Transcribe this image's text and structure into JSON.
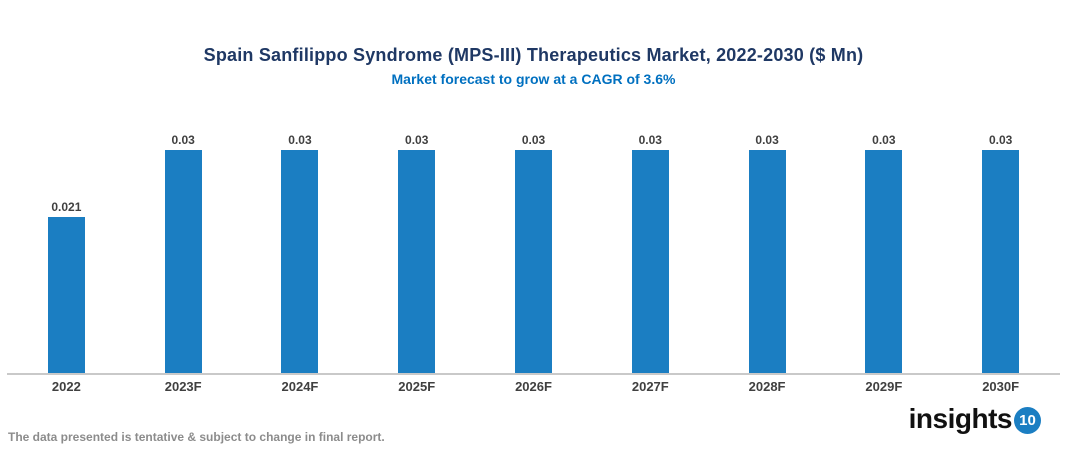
{
  "chart_data": {
    "type": "bar",
    "title": "Spain Sanfilippo Syndrome (MPS-III) Therapeutics Market, 2022-2030 ($ Mn)",
    "subtitle": "Market forecast to grow at a CAGR of 3.6%",
    "categories": [
      "2022",
      "2023F",
      "2024F",
      "2025F",
      "2026F",
      "2027F",
      "2028F",
      "2029F",
      "2030F"
    ],
    "values": [
      0.021,
      0.03,
      0.03,
      0.03,
      0.03,
      0.03,
      0.03,
      0.03,
      0.03
    ],
    "value_labels": [
      "0.021",
      "0.03",
      "0.03",
      "0.03",
      "0.03",
      "0.03",
      "0.03",
      "0.03",
      "0.03"
    ],
    "xlabel": "",
    "ylabel": "",
    "ylim": [
      0,
      0.03
    ],
    "grid": false,
    "legend": "none",
    "bar_color": "#1B7EC2",
    "title_color": "#1F3864",
    "subtitle_color": "#0070C0",
    "label_color": "#404040",
    "axis_line_color": "#C9C9C9"
  },
  "footer": {
    "note": "The data presented is tentative & subject to change in final report."
  },
  "logo": {
    "text": "insights",
    "badge": "10",
    "badge_color": "#1B7EC2"
  }
}
